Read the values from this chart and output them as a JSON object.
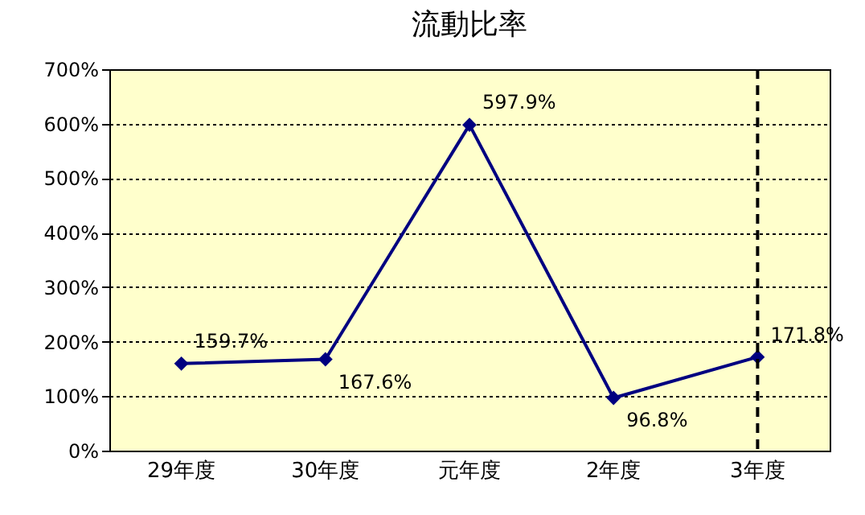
{
  "chart_data": {
    "type": "line",
    "title": "流動比率",
    "categories": [
      "29年度",
      "30年度",
      "元年度",
      "2年度",
      "3年度"
    ],
    "series": [
      {
        "color": "#000080",
        "values": [
          159.7,
          167.6,
          597.9,
          96.8,
          171.8
        ],
        "value_labels": [
          "159.7%",
          "167.6%",
          "597.9%",
          "96.8%",
          "171.8%"
        ]
      }
    ],
    "ylim": [
      0,
      700
    ],
    "yticks": [
      {
        "value": 0,
        "label": "0%"
      },
      {
        "value": 100,
        "label": "100%"
      },
      {
        "value": 200,
        "label": "200%"
      },
      {
        "value": 300,
        "label": "300%"
      },
      {
        "value": 400,
        "label": "400%"
      },
      {
        "value": 500,
        "label": "500%"
      },
      {
        "value": 600,
        "label": "600%"
      },
      {
        "value": 700,
        "label": "700%"
      }
    ],
    "grid": "y",
    "marker": "diamond",
    "line_style": "solid",
    "ref_lines": [
      {
        "axis": "x",
        "value": "3年度",
        "line_style": "dashed",
        "color": "#000000"
      }
    ]
  }
}
